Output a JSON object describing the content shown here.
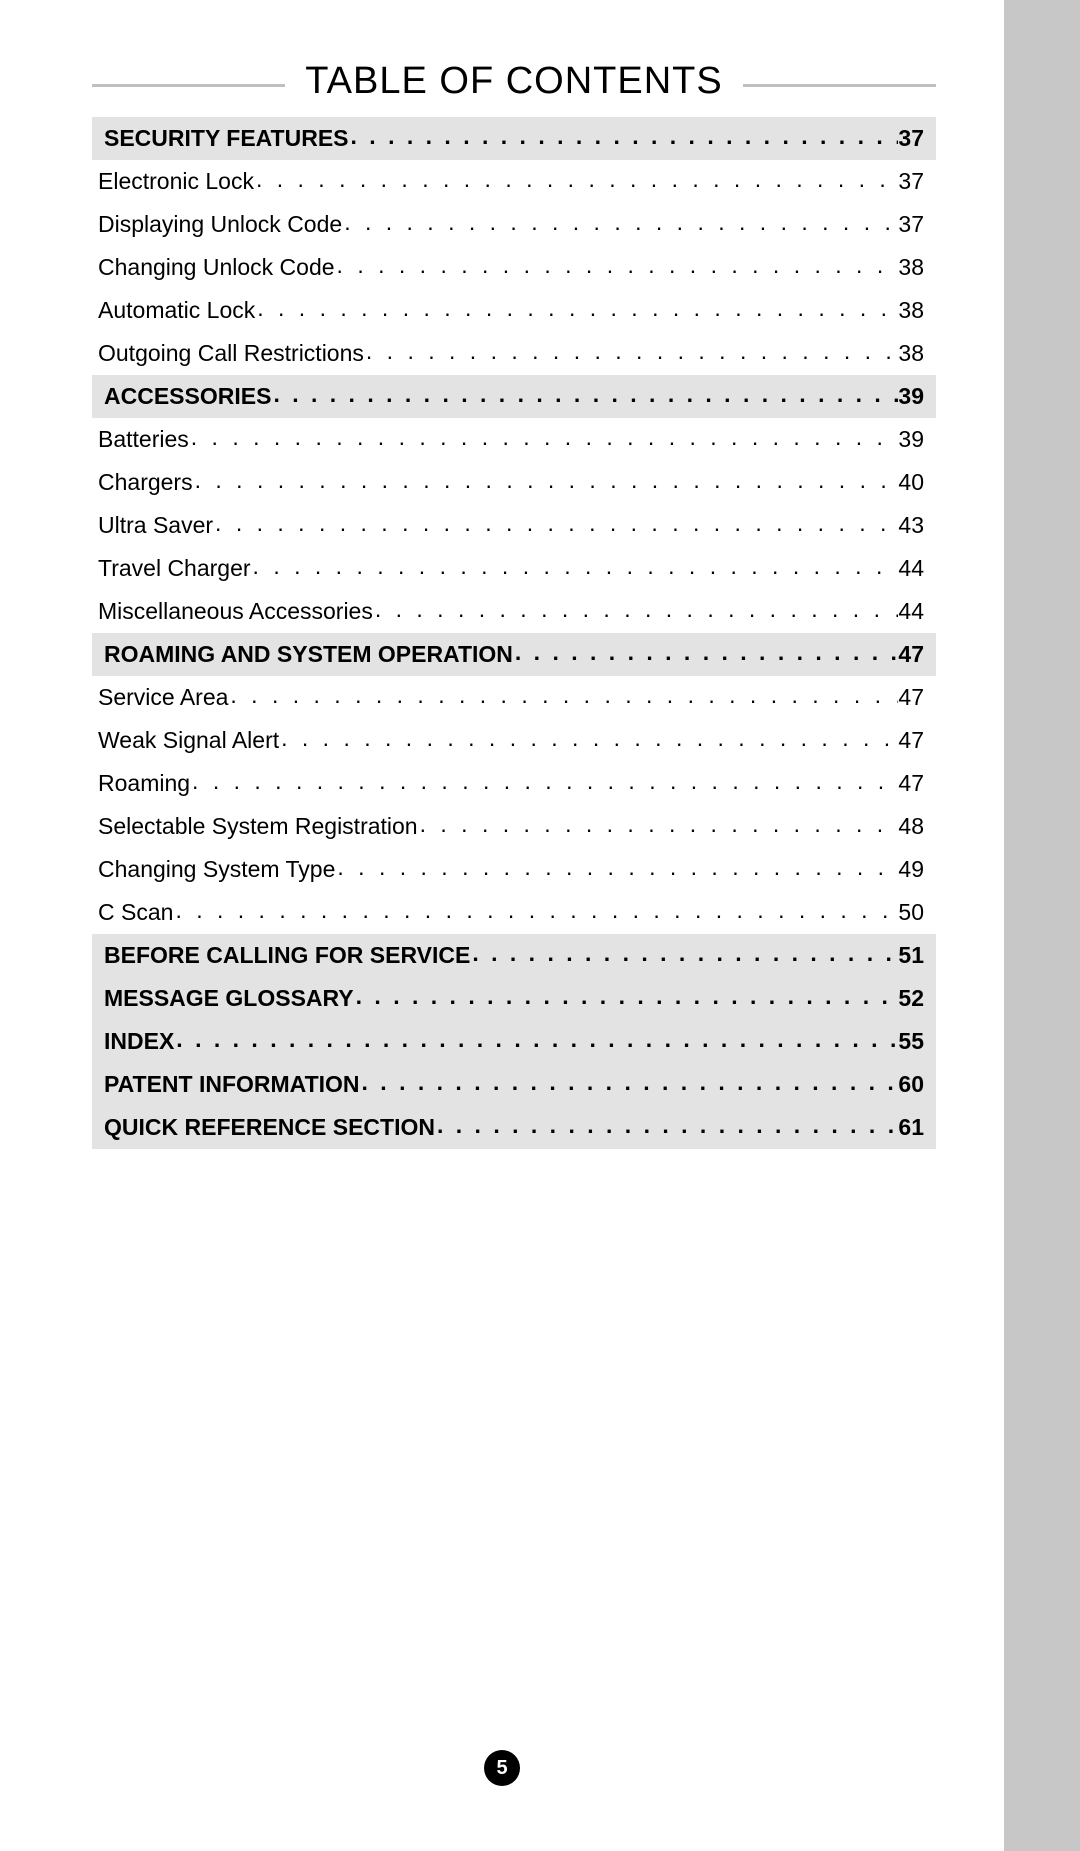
{
  "title": "TABLE OF CONTENTS",
  "page_number": "5",
  "colors": {
    "page_bg": "#ffffff",
    "outer_bg": "#c7c7c7",
    "section_bg": "#e3e3e3",
    "rule": "#c0c0c0",
    "text": "#000000",
    "badge_bg": "#000000",
    "badge_text": "#ffffff"
  },
  "typography": {
    "title_fontsize": 38,
    "row_fontsize": 23,
    "pagebadge_fontsize": 20,
    "font_family": "Optima"
  },
  "entries": [
    {
      "type": "section",
      "label": "SECURITY FEATURES",
      "page": "37"
    },
    {
      "type": "item",
      "label": "Electronic Lock",
      "page": "37"
    },
    {
      "type": "item",
      "label": "Displaying Unlock Code",
      "page": "37"
    },
    {
      "type": "item",
      "label": "Changing Unlock Code",
      "page": "38"
    },
    {
      "type": "item",
      "label": "Automatic Lock",
      "page": "38"
    },
    {
      "type": "item",
      "label": "Outgoing Call Restrictions",
      "page": "38"
    },
    {
      "type": "section",
      "label": "ACCESSORIES",
      "page": "39"
    },
    {
      "type": "item",
      "label": "Batteries",
      "page": "39"
    },
    {
      "type": "item",
      "label": "Chargers",
      "page": "40"
    },
    {
      "type": "item",
      "label": "Ultra Saver",
      "page": "43"
    },
    {
      "type": "item",
      "label": "Travel Charger",
      "page": "44"
    },
    {
      "type": "item",
      "label": "Miscellaneous Accessories",
      "page": "44"
    },
    {
      "type": "section",
      "label": "ROAMING AND SYSTEM OPERATION",
      "page": "47"
    },
    {
      "type": "item",
      "label": "Service Area",
      "page": "47"
    },
    {
      "type": "item",
      "label": "Weak Signal Alert",
      "page": "47"
    },
    {
      "type": "item",
      "label": "Roaming",
      "page": "47"
    },
    {
      "type": "item",
      "label": "Selectable System Registration",
      "page": "48"
    },
    {
      "type": "item",
      "label": "Changing System Type",
      "page": "49"
    },
    {
      "type": "item",
      "label": "C Scan",
      "page": "50"
    },
    {
      "type": "section",
      "label": "BEFORE CALLING FOR SERVICE",
      "page": "51"
    },
    {
      "type": "section",
      "label": "MESSAGE GLOSSARY",
      "page": "52"
    },
    {
      "type": "section",
      "label": "INDEX",
      "page": "55"
    },
    {
      "type": "section",
      "label": "PATENT INFORMATION",
      "page": "60"
    },
    {
      "type": "section",
      "label": "QUICK REFERENCE SECTION",
      "page": "61"
    }
  ]
}
